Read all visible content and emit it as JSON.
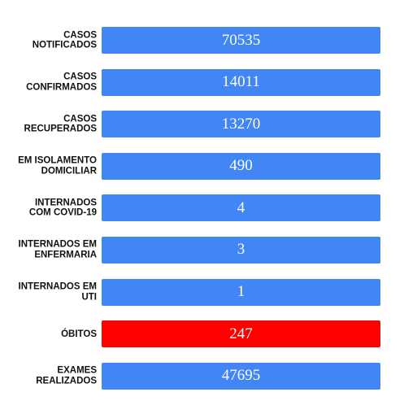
{
  "colors": {
    "bar_default": "#4285f4",
    "bar_deaths": "#ff0000",
    "label_text": "#111111",
    "value_text": "#ffffff"
  },
  "stats": [
    {
      "label": "CASOS\nNOTIFICADOS",
      "value": "70535",
      "color": "#4285f4"
    },
    {
      "label": "CASOS\nCONFIRMADOS",
      "value": "14011",
      "color": "#4285f4"
    },
    {
      "label": "CASOS\nRECUPERADOS",
      "value": "13270",
      "color": "#4285f4"
    },
    {
      "label": "EM ISOLAMENTO\nDOMICILIAR",
      "value": "490",
      "color": "#4285f4"
    },
    {
      "label": "INTERNADOS\nCOM COVID-19",
      "value": "4",
      "color": "#4285f4"
    },
    {
      "label": "INTERNADOS EM\nENFERMARIA",
      "value": "3",
      "color": "#4285f4"
    },
    {
      "label": "INTERNADOS EM\nUTI",
      "value": "1",
      "color": "#4285f4"
    },
    {
      "label": "ÓBITOS",
      "value": "247",
      "color": "#ff0000"
    },
    {
      "label": "EXAMES\nREALIZADOS",
      "value": "47695",
      "color": "#4285f4"
    }
  ]
}
